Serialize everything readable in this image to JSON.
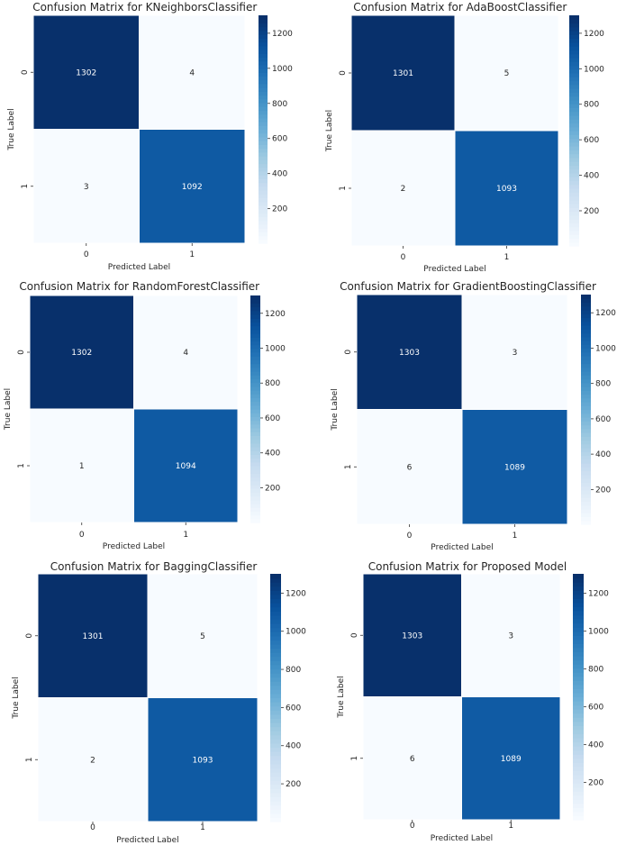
{
  "colormap": "Blues",
  "chart_data": [
    {
      "type": "heatmap",
      "title": "Confusion Matrix for KNeighborsClassifier",
      "xlabel": "Predicted Label",
      "ylabel": "True Label",
      "x_ticks": [
        "0",
        "1"
      ],
      "y_ticks": [
        "0",
        "1"
      ],
      "values": [
        [
          1302,
          4
        ],
        [
          3,
          1092
        ]
      ],
      "colorbar_ticks": [
        200,
        400,
        600,
        800,
        1000,
        1200
      ],
      "colorbar_range": [
        3,
        1302
      ]
    },
    {
      "type": "heatmap",
      "title": "Confusion Matrix for AdaBoostClassifier",
      "xlabel": "Predicted Label",
      "ylabel": "True Label",
      "x_ticks": [
        "0",
        "1"
      ],
      "y_ticks": [
        "0",
        "1"
      ],
      "values": [
        [
          1301,
          5
        ],
        [
          2,
          1093
        ]
      ],
      "colorbar_ticks": [
        200,
        400,
        600,
        800,
        1000,
        1200
      ],
      "colorbar_range": [
        2,
        1301
      ]
    },
    {
      "type": "heatmap",
      "title": "Confusion Matrix for RandomForestClassifier",
      "xlabel": "Predicted Label",
      "ylabel": "True Label",
      "x_ticks": [
        "0",
        "1"
      ],
      "y_ticks": [
        "0",
        "1"
      ],
      "values": [
        [
          1302,
          4
        ],
        [
          1,
          1094
        ]
      ],
      "colorbar_ticks": [
        200,
        400,
        600,
        800,
        1000,
        1200
      ],
      "colorbar_range": [
        1,
        1302
      ]
    },
    {
      "type": "heatmap",
      "title": "Confusion Matrix for GradientBoostingClassifier",
      "xlabel": "Predicted Label",
      "ylabel": "True Label",
      "x_ticks": [
        "0",
        "1"
      ],
      "y_ticks": [
        "0",
        "1"
      ],
      "values": [
        [
          1303,
          3
        ],
        [
          6,
          1089
        ]
      ],
      "colorbar_ticks": [
        200,
        400,
        600,
        800,
        1000,
        1200
      ],
      "colorbar_range": [
        3,
        1303
      ]
    },
    {
      "type": "heatmap",
      "title": "Confusion Matrix for BaggingClassifier",
      "xlabel": "Predicted Label",
      "ylabel": "True Label",
      "x_ticks": [
        "0",
        "1"
      ],
      "y_ticks": [
        "0",
        "1"
      ],
      "values": [
        [
          1301,
          5
        ],
        [
          2,
          1093
        ]
      ],
      "colorbar_ticks": [
        200,
        400,
        600,
        800,
        1000,
        1200
      ],
      "colorbar_range": [
        2,
        1301
      ]
    },
    {
      "type": "heatmap",
      "title": "Confusion Matrix for Proposed Model",
      "xlabel": "Predicted Label",
      "ylabel": "True Label",
      "x_ticks": [
        "0",
        "1"
      ],
      "y_ticks": [
        "0",
        "1"
      ],
      "values": [
        [
          1303,
          3
        ],
        [
          6,
          1089
        ]
      ],
      "colorbar_ticks": [
        200,
        400,
        600,
        800,
        1000,
        1200
      ],
      "colorbar_range": [
        3,
        1303
      ]
    }
  ]
}
